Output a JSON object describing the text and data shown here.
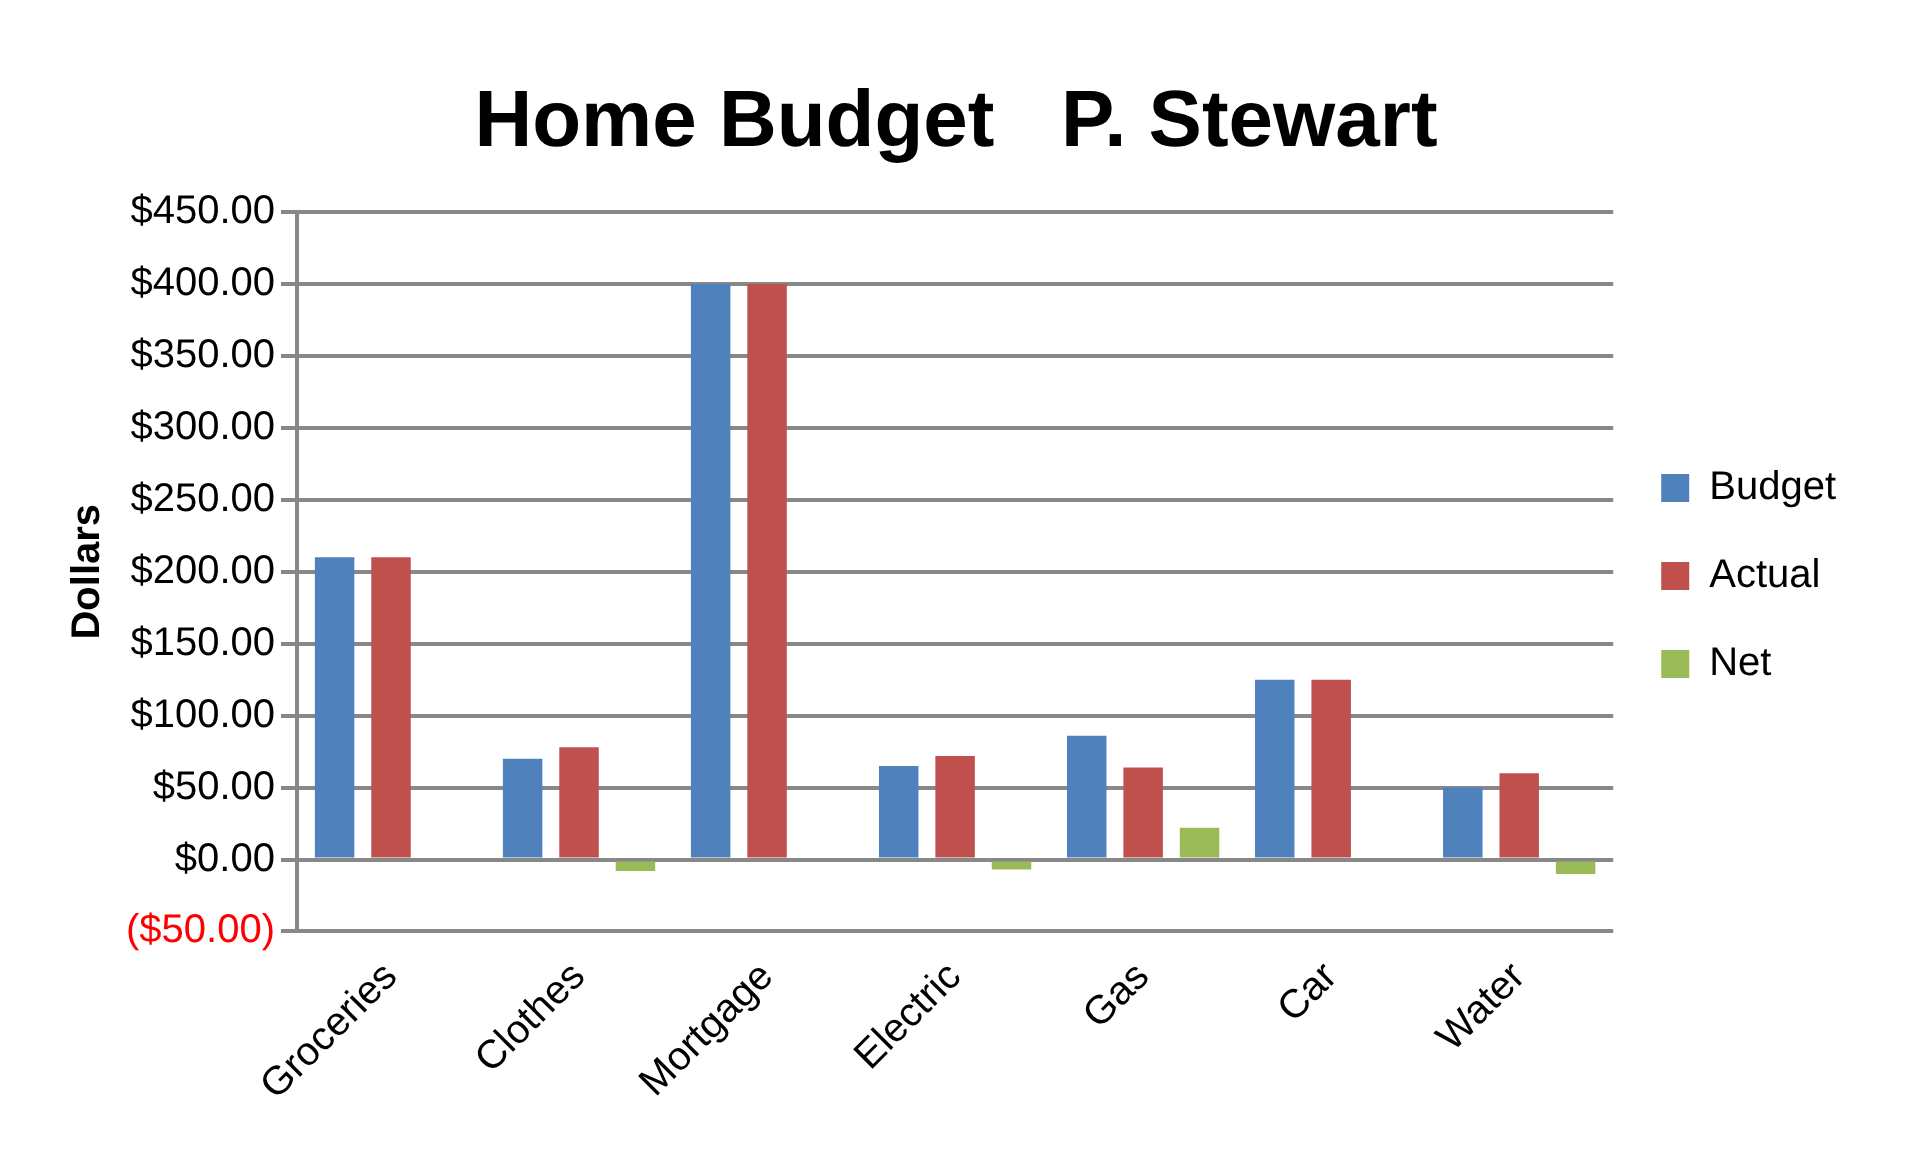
{
  "chart_data": {
    "type": "bar",
    "title": "Home Budget   P. Stewart",
    "ylabel": "Dollars",
    "categories": [
      "Groceries",
      "Clothes",
      "Mortgage",
      "Electric",
      "Gas",
      "Car",
      "Water"
    ],
    "series": [
      {
        "name": "Budget",
        "color": "#4f81bd",
        "values": [
          210,
          70,
          400,
          65,
          86,
          125,
          50
        ]
      },
      {
        "name": "Actual",
        "color": "#c0504d",
        "values": [
          210,
          78,
          400,
          72,
          64,
          125,
          60
        ]
      },
      {
        "name": "Net",
        "color": "#9bbb59",
        "values": [
          null,
          -8,
          null,
          -7,
          22,
          null,
          -10
        ]
      }
    ],
    "ylim": [
      -50,
      450
    ],
    "yticks": [
      {
        "value": -50,
        "label": "($50.00)"
      },
      {
        "value": 0,
        "label": "$0.00"
      },
      {
        "value": 50,
        "label": "$50.00"
      },
      {
        "value": 100,
        "label": "$100.00"
      },
      {
        "value": 150,
        "label": "$150.00"
      },
      {
        "value": 200,
        "label": "$200.00"
      },
      {
        "value": 250,
        "label": "$250.00"
      },
      {
        "value": 300,
        "label": "$300.00"
      },
      {
        "value": 350,
        "label": "$350.00"
      },
      {
        "value": 400,
        "label": "$400.00"
      },
      {
        "value": 450,
        "label": "$450.00"
      }
    ],
    "grid": "y",
    "legend": "right"
  }
}
